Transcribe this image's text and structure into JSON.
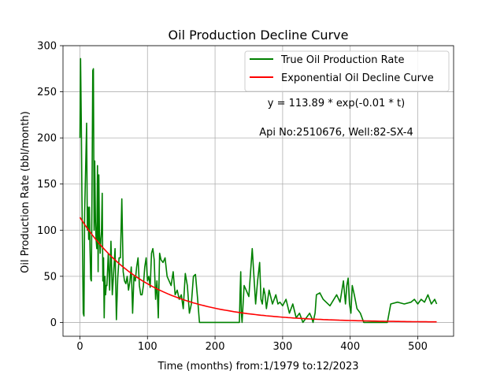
{
  "chart_data": {
    "type": "line",
    "title": "Oil Production Decline Curve",
    "xlabel": "Time (months) from:1/1979 to:12/2023",
    "ylabel": "Oil Production Rate (bbl/month)",
    "xlim": [
      -25,
      553
    ],
    "ylim": [
      -15,
      300
    ],
    "xticks": [
      0,
      100,
      200,
      300,
      400,
      500
    ],
    "yticks": [
      0,
      50,
      100,
      150,
      200,
      250,
      300
    ],
    "grid": true,
    "legend_position": "top-right",
    "annotations": [
      "y = 113.89 * exp(-0.01 * t)",
      "Api No:2510676, Well:82-SX-4"
    ],
    "series": [
      {
        "name": "True Oil Production Rate",
        "color": "#008000",
        "x": [
          0,
          1,
          2,
          3,
          4,
          5,
          6,
          7,
          8,
          10,
          11,
          12,
          13,
          14,
          15,
          16,
          17,
          18,
          19,
          20,
          21,
          22,
          23,
          24,
          25,
          26,
          27,
          28,
          29,
          30,
          31,
          32,
          33,
          34,
          35,
          36,
          37,
          38,
          39,
          40,
          42,
          44,
          46,
          48,
          50,
          52,
          54,
          56,
          58,
          60,
          62,
          64,
          66,
          68,
          70,
          72,
          74,
          76,
          78,
          80,
          82,
          84,
          86,
          88,
          90,
          92,
          94,
          96,
          98,
          100,
          102,
          104,
          106,
          108,
          110,
          112,
          114,
          116,
          118,
          120,
          123,
          126,
          129,
          132,
          135,
          138,
          141,
          144,
          147,
          150,
          153,
          156,
          159,
          162,
          165,
          168,
          171,
          174,
          177,
          180,
          190,
          200,
          210,
          220,
          230,
          236,
          237,
          238,
          239,
          240,
          243,
          246,
          250,
          255,
          260,
          263,
          266,
          268,
          270,
          272,
          274,
          276,
          280,
          285,
          290,
          293,
          296,
          300,
          305,
          310,
          315,
          320,
          325,
          330,
          335,
          340,
          343,
          345,
          348,
          350,
          355,
          360,
          370,
          380,
          385,
          390,
          393,
          395,
          397,
          399,
          401,
          403,
          406,
          410,
          415,
          420,
          430,
          440,
          450,
          455,
          460,
          470,
          480,
          490,
          495,
          500,
          505,
          510,
          515,
          520,
          525,
          528
        ],
        "y": [
          200,
          286,
          220,
          140,
          70,
          10,
          7,
          120,
          150,
          216,
          100,
          125,
          90,
          125,
          80,
          47,
          45,
          150,
          273,
          275,
          100,
          175,
          110,
          90,
          80,
          170,
          55,
          160,
          95,
          75,
          90,
          100,
          140,
          45,
          70,
          5,
          50,
          30,
          40,
          40,
          75,
          35,
          88,
          30,
          55,
          80,
          3,
          48,
          70,
          70,
          134,
          55,
          45,
          42,
          50,
          35,
          45,
          60,
          10,
          50,
          45,
          60,
          70,
          40,
          30,
          30,
          40,
          60,
          70,
          45,
          50,
          38,
          75,
          80,
          68,
          25,
          45,
          5,
          75,
          68,
          65,
          70,
          50,
          45,
          40,
          55,
          30,
          35,
          25,
          30,
          15,
          53,
          40,
          10,
          20,
          50,
          52,
          27,
          0,
          0,
          0,
          0,
          0,
          0,
          0,
          0,
          30,
          55,
          10,
          0,
          40,
          35,
          28,
          80,
          20,
          45,
          65,
          25,
          20,
          37,
          30,
          15,
          35,
          20,
          30,
          20,
          22,
          18,
          25,
          10,
          20,
          5,
          10,
          0,
          5,
          10,
          5,
          0,
          10,
          30,
          32,
          25,
          18,
          30,
          22,
          45,
          20,
          40,
          48,
          20,
          10,
          40,
          30,
          15,
          10,
          0,
          0,
          0,
          0,
          0,
          20,
          22,
          20,
          22,
          25,
          20,
          25,
          22,
          30,
          20,
          25,
          20
        ]
      },
      {
        "name": "Exponential Oil Decline Curve",
        "color": "#ff0000",
        "model": {
          "a": 113.89,
          "b": 0.01,
          "t_min": 0,
          "t_max": 528
        }
      }
    ]
  }
}
